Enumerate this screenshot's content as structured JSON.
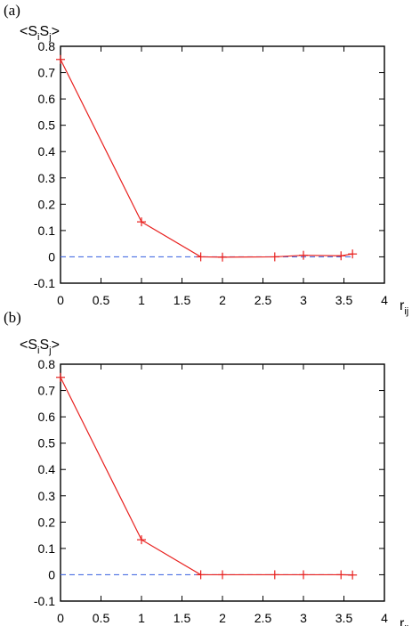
{
  "chart_data": [
    {
      "panel_label": "(a)",
      "type": "line",
      "ylabel": {
        "base1": "<S",
        "sub1": "i",
        "base2": "S",
        "sub2": "j",
        "base3": ">"
      },
      "xlabel": {
        "base": "r",
        "sub": "ij"
      },
      "xlim": [
        0,
        4
      ],
      "ylim": [
        -0.1,
        0.8
      ],
      "xticks": [
        0,
        0.5,
        1,
        1.5,
        2,
        2.5,
        3,
        3.5,
        4
      ],
      "xtick_labels": [
        "0",
        "0.5",
        "1",
        "1.5",
        "2",
        "2.5",
        "3",
        "3.5",
        "4"
      ],
      "yticks": [
        -0.1,
        0,
        0.1,
        0.2,
        0.3,
        0.4,
        0.5,
        0.6,
        0.7,
        0.8
      ],
      "ytick_labels": [
        "-0.1",
        "0",
        "0.1",
        "0.2",
        "0.3",
        "0.4",
        "0.5",
        "0.6",
        "0.7",
        "0.8"
      ],
      "reference_line": {
        "y": 0,
        "color": "#4a6fe3",
        "style": "dashed"
      },
      "series": [
        {
          "color": "#e8201e",
          "marker": "plus",
          "x": [
            0,
            1,
            1.732,
            2,
            2.646,
            3,
            3.464,
            3.606
          ],
          "y": [
            0.75,
            0.133,
            0.0,
            -0.001,
            0.0,
            0.006,
            0.004,
            0.011
          ]
        }
      ]
    },
    {
      "panel_label": "(b)",
      "type": "line",
      "ylabel": {
        "base1": "<S",
        "sub1": "i",
        "base2": "S",
        "sub2": "j",
        "base3": ">"
      },
      "xlabel": {
        "base": "r",
        "sub": "ij"
      },
      "xlim": [
        0,
        4
      ],
      "ylim": [
        -0.1,
        0.8
      ],
      "xticks": [
        0,
        0.5,
        1,
        1.5,
        2,
        2.5,
        3,
        3.5,
        4
      ],
      "xtick_labels": [
        "0",
        "0.5",
        "1",
        "1.5",
        "2",
        "2.5",
        "3",
        "3.5",
        "4"
      ],
      "yticks": [
        -0.1,
        0,
        0.1,
        0.2,
        0.3,
        0.4,
        0.5,
        0.6,
        0.7,
        0.8
      ],
      "ytick_labels": [
        "-0.1",
        "0",
        "0.1",
        "0.2",
        "0.3",
        "0.4",
        "0.5",
        "0.6",
        "0.7",
        "0.8"
      ],
      "reference_line": {
        "y": 0,
        "color": "#4a6fe3",
        "style": "dashed"
      },
      "series": [
        {
          "color": "#e8201e",
          "marker": "plus",
          "x": [
            0,
            1,
            1.732,
            2,
            2.646,
            3,
            3.464,
            3.606
          ],
          "y": [
            0.75,
            0.133,
            0.0,
            0.0,
            0.0,
            0.0,
            0.0,
            -0.001
          ]
        }
      ]
    }
  ]
}
